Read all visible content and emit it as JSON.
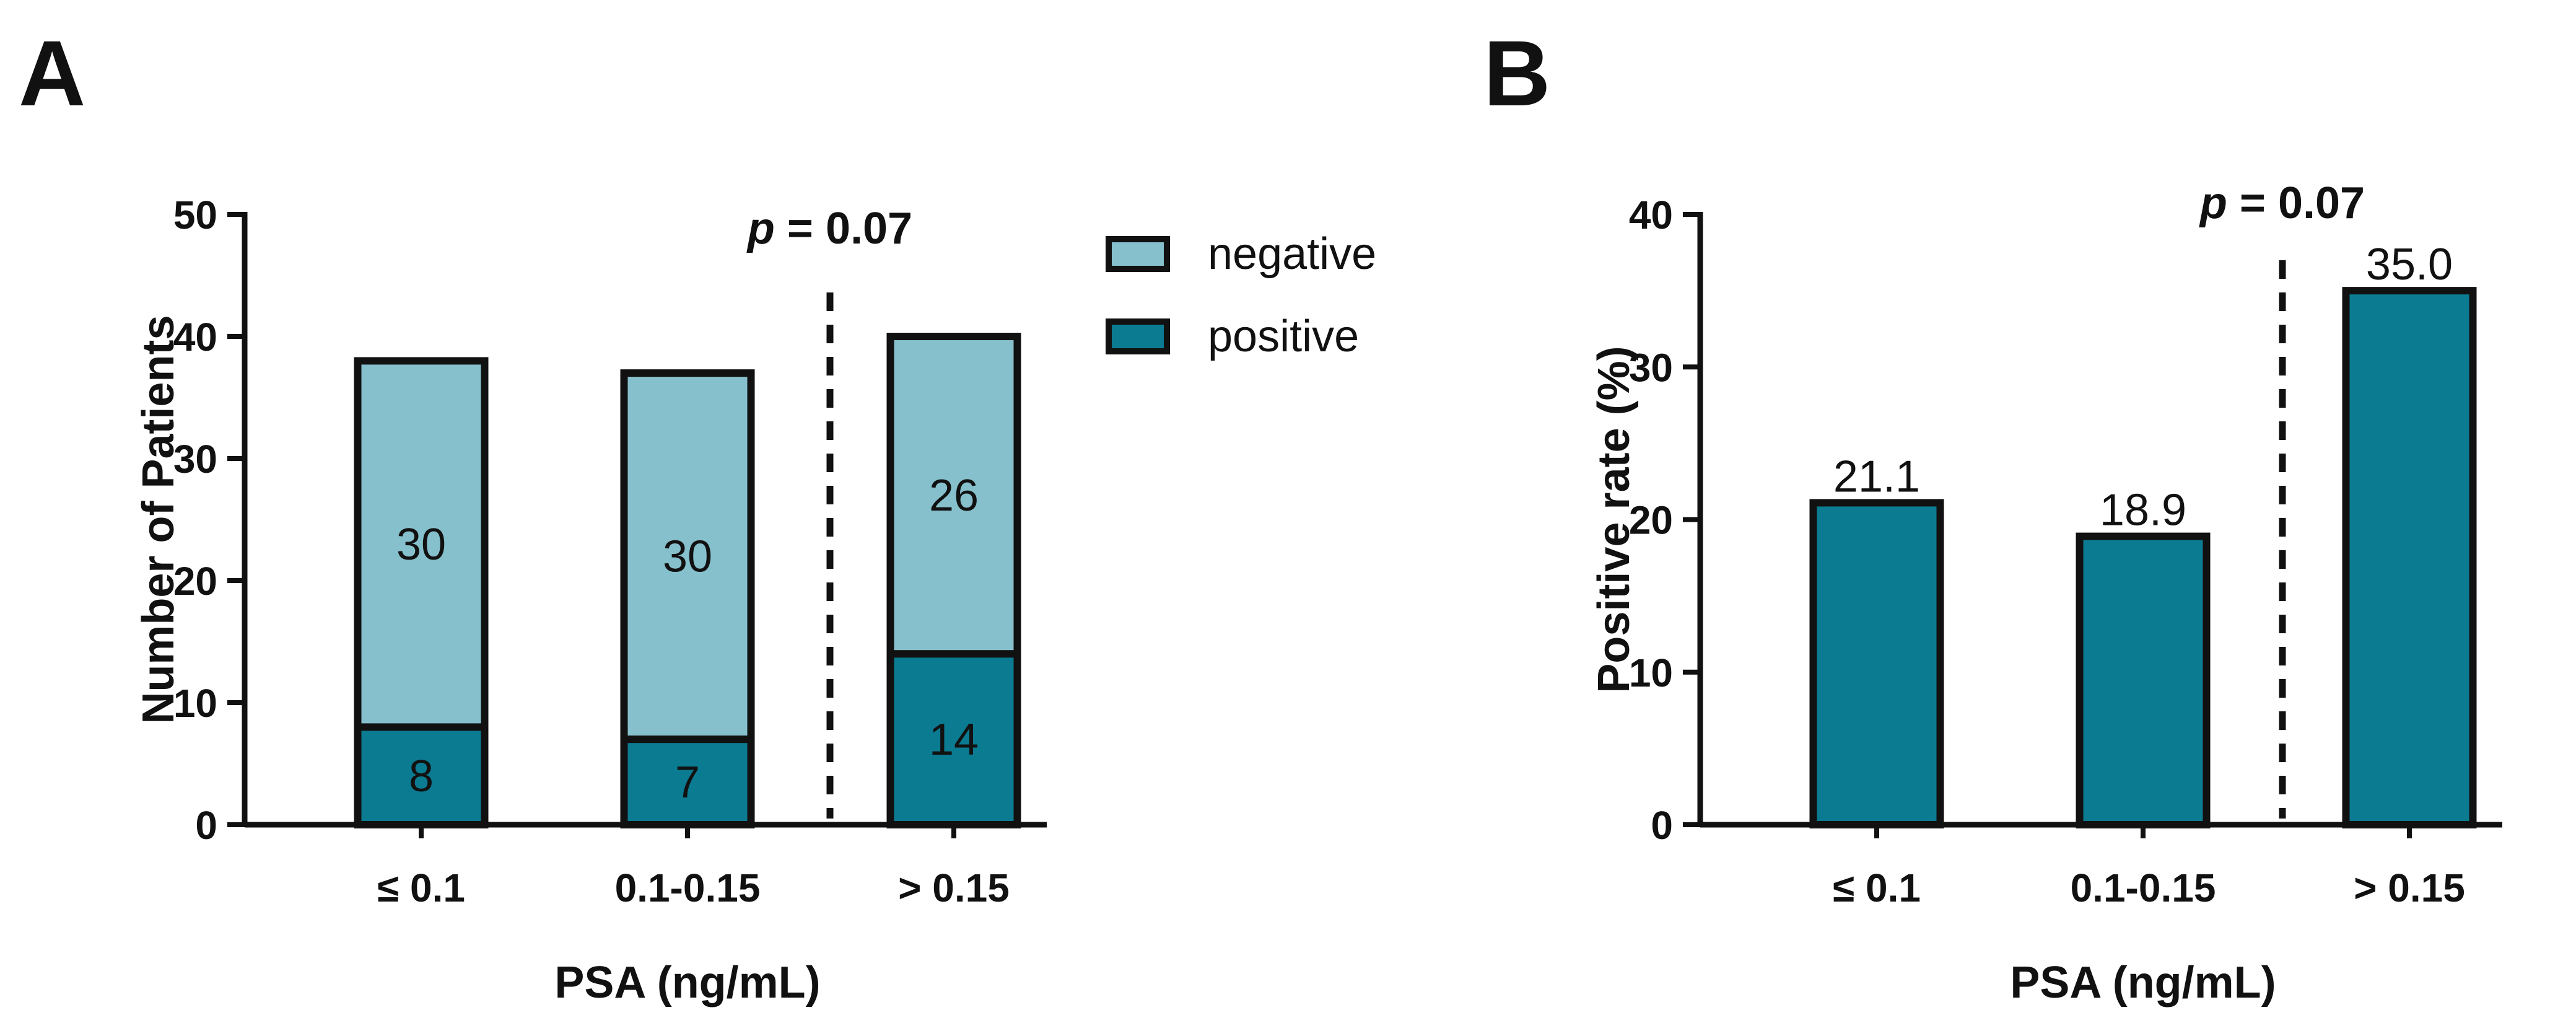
{
  "colors": {
    "positive": "#0b7b91",
    "negative": "#86c0cc",
    "stroke": "#111111"
  },
  "chart_data": [
    {
      "panel": "A",
      "type": "bar",
      "stacked": true,
      "categories": [
        "≤ 0.1",
        "0.1-0.15",
        "> 0.15"
      ],
      "series": [
        {
          "name": "positive",
          "values": [
            8,
            7,
            14
          ]
        },
        {
          "name": "negative",
          "values": [
            30,
            30,
            26
          ]
        }
      ],
      "xlabel": "PSA (ng/mL)",
      "ylabel": "Number of Patients",
      "ylim": [
        0,
        50
      ],
      "yticks": [
        0,
        10,
        20,
        30,
        40,
        50
      ],
      "legend_position": "top-right",
      "p_value_prefix": "p",
      "p_value_text": " = 0.07"
    },
    {
      "panel": "B",
      "type": "bar",
      "stacked": false,
      "categories": [
        "≤ 0.1",
        "0.1-0.15",
        "> 0.15"
      ],
      "values": [
        21.1,
        18.9,
        35.0
      ],
      "value_labels": [
        "21.1",
        "18.9",
        "35.0"
      ],
      "xlabel": "PSA (ng/mL)",
      "ylabel": "Positive rate (%)",
      "ylim": [
        0,
        40
      ],
      "yticks": [
        0,
        10,
        20,
        30,
        40
      ],
      "p_value_prefix": "p",
      "p_value_text": " = 0.07"
    }
  ]
}
